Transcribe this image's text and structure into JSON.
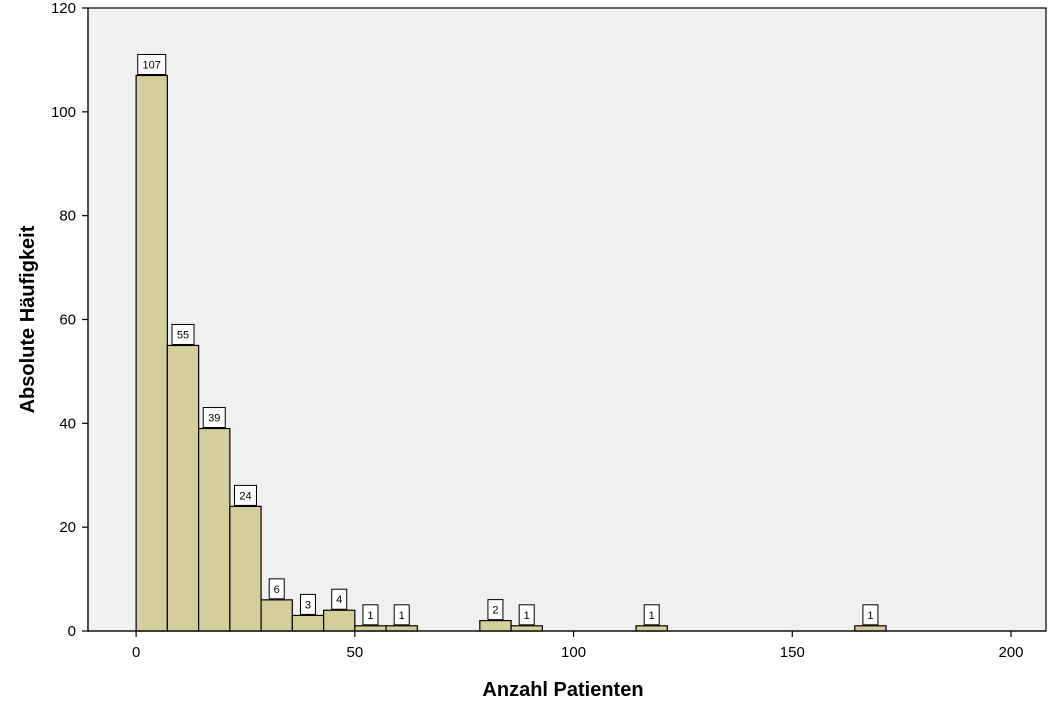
{
  "chart_data": {
    "type": "bar",
    "xlabel": "Anzahl Patienten",
    "ylabel": "Absolute Häufigkeit",
    "xlim": [
      -11,
      208
    ],
    "ylim": [
      0,
      120
    ],
    "xticks": [
      "0",
      "50",
      "100",
      "150",
      "200"
    ],
    "yticks": [
      "0",
      "20",
      "40",
      "60",
      "80",
      "100",
      "120"
    ],
    "bin_width": 7.14,
    "bins": [
      {
        "x0": 0,
        "x1": 7.14,
        "value": 107,
        "label": "107"
      },
      {
        "x0": 7.14,
        "x1": 14.29,
        "value": 55,
        "label": "55"
      },
      {
        "x0": 14.29,
        "x1": 21.43,
        "value": 39,
        "label": "39"
      },
      {
        "x0": 21.43,
        "x1": 28.57,
        "value": 24,
        "label": "24"
      },
      {
        "x0": 28.57,
        "x1": 35.71,
        "value": 6,
        "label": "6"
      },
      {
        "x0": 35.71,
        "x1": 42.86,
        "value": 3,
        "label": "3"
      },
      {
        "x0": 42.86,
        "x1": 50.0,
        "value": 4,
        "label": "4"
      },
      {
        "x0": 50.0,
        "x1": 57.14,
        "value": 1,
        "label": "1"
      },
      {
        "x0": 57.14,
        "x1": 64.29,
        "value": 1,
        "label": "1"
      },
      {
        "x0": 78.57,
        "x1": 85.71,
        "value": 2,
        "label": "2"
      },
      {
        "x0": 85.71,
        "x1": 92.86,
        "value": 1,
        "label": "1"
      },
      {
        "x0": 114.29,
        "x1": 121.43,
        "value": 1,
        "label": "1"
      },
      {
        "x0": 164.29,
        "x1": 171.43,
        "value": 1,
        "label": "1"
      }
    ],
    "grid": false,
    "legend": "none",
    "colors": {
      "plot_background": "#f0f0f0",
      "bar_fill": "#d4cf9a",
      "bar_stroke": "#000000",
      "label_box": "#ffffff"
    }
  }
}
